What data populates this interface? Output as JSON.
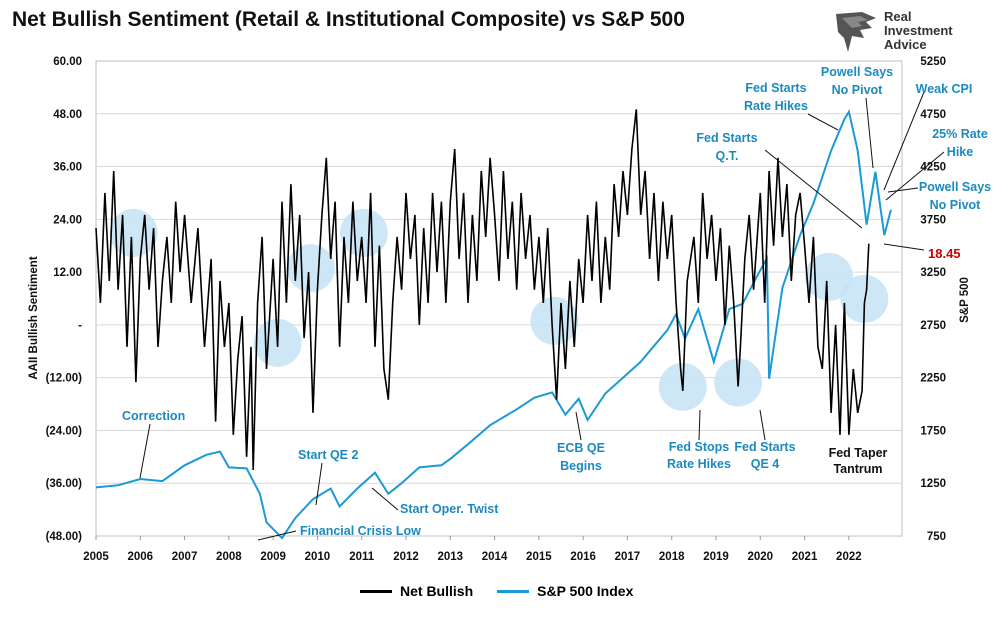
{
  "title": "Net Bullish Sentiment (Retail & Institutional Composite) vs S&P 500",
  "logo": {
    "line1": "Real",
    "line2": "Investment",
    "line3": "Advice"
  },
  "colors": {
    "net_bullish": "#000000",
    "sp500": "#1c9ad6",
    "circle": "#c5e3f6",
    "annotation": "#1c8ac0",
    "last_value": "#cc0000"
  },
  "chart_data": {
    "type": "line",
    "title": "Net Bullish Sentiment (Retail & Institutional Composite) vs S&P 500",
    "xlabel": "",
    "ylabel_left": "AAII Bullish Sentiment",
    "ylabel_right": "S&P 500",
    "x_ticks": [
      "2005",
      "2006",
      "2007",
      "2008",
      "2009",
      "2010",
      "2011",
      "2012",
      "2013",
      "2014",
      "2015",
      "2016",
      "2017",
      "2018",
      "2019",
      "2020",
      "2021",
      "2022"
    ],
    "y_left_ticks": [
      "60.00",
      "48.00",
      "36.00",
      "24.00",
      "12.00",
      "-",
      "(12.00)",
      "(24.00)",
      "(36.00)",
      "(48.00)"
    ],
    "y_left_range": [
      -48,
      60
    ],
    "y_right_ticks": [
      "5250",
      "4750",
      "4250",
      "3750",
      "3250",
      "2750",
      "2250",
      "1750",
      "1250",
      "750"
    ],
    "y_right_range": [
      750,
      5250
    ],
    "series": [
      {
        "name": "Net Bullish",
        "axis": "left",
        "points": [
          [
            2005.0,
            22
          ],
          [
            2005.1,
            5
          ],
          [
            2005.2,
            30
          ],
          [
            2005.3,
            10
          ],
          [
            2005.4,
            35
          ],
          [
            2005.5,
            8
          ],
          [
            2005.6,
            25
          ],
          [
            2005.7,
            -5
          ],
          [
            2005.8,
            20
          ],
          [
            2005.9,
            -13
          ],
          [
            2006.0,
            15
          ],
          [
            2006.1,
            25
          ],
          [
            2006.2,
            8
          ],
          [
            2006.3,
            22
          ],
          [
            2006.4,
            -5
          ],
          [
            2006.5,
            10
          ],
          [
            2006.6,
            20
          ],
          [
            2006.7,
            5
          ],
          [
            2006.8,
            28
          ],
          [
            2006.9,
            12
          ],
          [
            2007.0,
            25
          ],
          [
            2007.15,
            5
          ],
          [
            2007.3,
            22
          ],
          [
            2007.45,
            -5
          ],
          [
            2007.6,
            15
          ],
          [
            2007.7,
            -22
          ],
          [
            2007.8,
            10
          ],
          [
            2007.9,
            -5
          ],
          [
            2008.0,
            5
          ],
          [
            2008.1,
            -25
          ],
          [
            2008.2,
            -8
          ],
          [
            2008.3,
            2
          ],
          [
            2008.4,
            -30
          ],
          [
            2008.5,
            -5
          ],
          [
            2008.55,
            -33
          ],
          [
            2008.65,
            5
          ],
          [
            2008.75,
            20
          ],
          [
            2008.85,
            -10
          ],
          [
            2009.0,
            15
          ],
          [
            2009.1,
            -5
          ],
          [
            2009.2,
            28
          ],
          [
            2009.3,
            5
          ],
          [
            2009.4,
            32
          ],
          [
            2009.5,
            10
          ],
          [
            2009.6,
            25
          ],
          [
            2009.7,
            -3
          ],
          [
            2009.8,
            12
          ],
          [
            2009.9,
            -20
          ],
          [
            2010.0,
            8
          ],
          [
            2010.1,
            25
          ],
          [
            2010.2,
            38
          ],
          [
            2010.3,
            15
          ],
          [
            2010.4,
            28
          ],
          [
            2010.5,
            -5
          ],
          [
            2010.6,
            20
          ],
          [
            2010.7,
            5
          ],
          [
            2010.8,
            28
          ],
          [
            2010.9,
            10
          ],
          [
            2011.0,
            20
          ],
          [
            2011.1,
            5
          ],
          [
            2011.2,
            30
          ],
          [
            2011.3,
            -5
          ],
          [
            2011.4,
            18
          ],
          [
            2011.5,
            -10
          ],
          [
            2011.6,
            -17
          ],
          [
            2011.7,
            5
          ],
          [
            2011.8,
            20
          ],
          [
            2011.9,
            8
          ],
          [
            2012.0,
            30
          ],
          [
            2012.1,
            15
          ],
          [
            2012.2,
            25
          ],
          [
            2012.3,
            0
          ],
          [
            2012.4,
            22
          ],
          [
            2012.5,
            5
          ],
          [
            2012.6,
            30
          ],
          [
            2012.7,
            12
          ],
          [
            2012.8,
            28
          ],
          [
            2012.9,
            5
          ],
          [
            2013.0,
            28
          ],
          [
            2013.1,
            40
          ],
          [
            2013.2,
            15
          ],
          [
            2013.3,
            30
          ],
          [
            2013.4,
            5
          ],
          [
            2013.5,
            25
          ],
          [
            2013.6,
            10
          ],
          [
            2013.7,
            35
          ],
          [
            2013.8,
            20
          ],
          [
            2013.9,
            38
          ],
          [
            2014.0,
            25
          ],
          [
            2014.1,
            10
          ],
          [
            2014.2,
            35
          ],
          [
            2014.3,
            15
          ],
          [
            2014.4,
            28
          ],
          [
            2014.5,
            8
          ],
          [
            2014.6,
            30
          ],
          [
            2014.7,
            15
          ],
          [
            2014.8,
            25
          ],
          [
            2014.9,
            8
          ],
          [
            2015.0,
            20
          ],
          [
            2015.1,
            5
          ],
          [
            2015.2,
            22
          ],
          [
            2015.3,
            0
          ],
          [
            2015.4,
            -17
          ],
          [
            2015.5,
            5
          ],
          [
            2015.6,
            -10
          ],
          [
            2015.7,
            10
          ],
          [
            2015.8,
            -5
          ],
          [
            2015.9,
            15
          ],
          [
            2016.0,
            5
          ],
          [
            2016.1,
            25
          ],
          [
            2016.2,
            10
          ],
          [
            2016.3,
            28
          ],
          [
            2016.4,
            5
          ],
          [
            2016.5,
            20
          ],
          [
            2016.6,
            8
          ],
          [
            2016.7,
            32
          ],
          [
            2016.8,
            20
          ],
          [
            2016.9,
            35
          ],
          [
            2017.0,
            25
          ],
          [
            2017.1,
            40
          ],
          [
            2017.2,
            49
          ],
          [
            2017.3,
            25
          ],
          [
            2017.4,
            35
          ],
          [
            2017.5,
            15
          ],
          [
            2017.6,
            30
          ],
          [
            2017.7,
            10
          ],
          [
            2017.8,
            28
          ],
          [
            2017.9,
            15
          ],
          [
            2018.0,
            25
          ],
          [
            2018.1,
            5
          ],
          [
            2018.2,
            -10
          ],
          [
            2018.25,
            -15
          ],
          [
            2018.35,
            10
          ],
          [
            2018.5,
            20
          ],
          [
            2018.6,
            5
          ],
          [
            2018.7,
            30
          ],
          [
            2018.8,
            15
          ],
          [
            2018.9,
            25
          ],
          [
            2019.0,
            10
          ],
          [
            2019.1,
            22
          ],
          [
            2019.2,
            0
          ],
          [
            2019.3,
            18
          ],
          [
            2019.4,
            5
          ],
          [
            2019.5,
            -14
          ],
          [
            2019.55,
            -5
          ],
          [
            2019.65,
            15
          ],
          [
            2019.75,
            25
          ],
          [
            2019.85,
            8
          ],
          [
            2020.0,
            30
          ],
          [
            2020.1,
            5
          ],
          [
            2020.2,
            35
          ],
          [
            2020.3,
            18
          ],
          [
            2020.4,
            38
          ],
          [
            2020.5,
            20
          ],
          [
            2020.6,
            32
          ],
          [
            2020.7,
            10
          ],
          [
            2020.8,
            25
          ],
          [
            2020.9,
            30
          ],
          [
            2021.0,
            18
          ],
          [
            2021.1,
            5
          ],
          [
            2021.2,
            20
          ],
          [
            2021.3,
            -5
          ],
          [
            2021.4,
            -10
          ],
          [
            2021.5,
            10
          ],
          [
            2021.6,
            -20
          ],
          [
            2021.7,
            0
          ],
          [
            2021.8,
            -25
          ],
          [
            2021.9,
            5
          ],
          [
            2022.0,
            -25
          ],
          [
            2022.1,
            -10
          ],
          [
            2022.2,
            -20
          ],
          [
            2022.3,
            -15
          ],
          [
            2022.35,
            5
          ],
          [
            2022.4,
            8
          ],
          [
            2022.45,
            18.45
          ]
        ]
      },
      {
        "name": "S&P 500 Index",
        "axis": "right",
        "points": [
          [
            2005.0,
            1210
          ],
          [
            2005.5,
            1230
          ],
          [
            2006.0,
            1290
          ],
          [
            2006.5,
            1270
          ],
          [
            2007.0,
            1420
          ],
          [
            2007.5,
            1520
          ],
          [
            2007.8,
            1550
          ],
          [
            2008.0,
            1400
          ],
          [
            2008.4,
            1390
          ],
          [
            2008.7,
            1150
          ],
          [
            2008.85,
            880
          ],
          [
            2009.2,
            730
          ],
          [
            2009.5,
            920
          ],
          [
            2009.9,
            1100
          ],
          [
            2010.3,
            1200
          ],
          [
            2010.5,
            1030
          ],
          [
            2010.9,
            1200
          ],
          [
            2011.3,
            1350
          ],
          [
            2011.6,
            1150
          ],
          [
            2011.9,
            1250
          ],
          [
            2012.3,
            1400
          ],
          [
            2012.8,
            1420
          ],
          [
            2013.0,
            1480
          ],
          [
            2013.4,
            1620
          ],
          [
            2013.9,
            1800
          ],
          [
            2014.5,
            1950
          ],
          [
            2014.9,
            2060
          ],
          [
            2015.3,
            2110
          ],
          [
            2015.6,
            1900
          ],
          [
            2015.9,
            2050
          ],
          [
            2016.1,
            1850
          ],
          [
            2016.5,
            2100
          ],
          [
            2016.9,
            2250
          ],
          [
            2017.3,
            2400
          ],
          [
            2017.9,
            2700
          ],
          [
            2018.1,
            2850
          ],
          [
            2018.3,
            2620
          ],
          [
            2018.6,
            2900
          ],
          [
            2018.95,
            2400
          ],
          [
            2019.3,
            2900
          ],
          [
            2019.6,
            2950
          ],
          [
            2019.95,
            3230
          ],
          [
            2020.15,
            3380
          ],
          [
            2020.2,
            2240
          ],
          [
            2020.5,
            3100
          ],
          [
            2020.9,
            3600
          ],
          [
            2021.2,
            3900
          ],
          [
            2021.6,
            4400
          ],
          [
            2021.9,
            4700
          ],
          [
            2022.0,
            4770
          ],
          [
            2022.2,
            4400
          ],
          [
            2022.4,
            3700
          ],
          [
            2022.6,
            4200
          ],
          [
            2022.8,
            3600
          ],
          [
            2022.95,
            3840
          ]
        ]
      }
    ],
    "circles": [
      2005.85,
      2009.1,
      2009.85,
      2011.05,
      2015.35,
      2018.25,
      2019.5,
      2021.55,
      2022.35
    ],
    "annotations": [
      "Correction",
      "Financial Crisis Low",
      "Start QE 2",
      "Start Oper. Twist",
      "ECB QE",
      "Begins",
      "Fed Stops",
      "Rate Hikes",
      "Fed Starts",
      "QE 4",
      "Fed Starts",
      "Q.T.",
      "Fed Starts",
      "Rate Hikes",
      "Powell Says",
      "No Pivot",
      "Weak CPI",
      "25% Rate",
      "Hike",
      "Powell Says",
      "No Pivot",
      "Fed Taper",
      "Tantrum",
      "18.45"
    ],
    "legend": [
      "Net Bullish",
      "S&P 500 Index"
    ],
    "legend_position": "bottom-center"
  }
}
